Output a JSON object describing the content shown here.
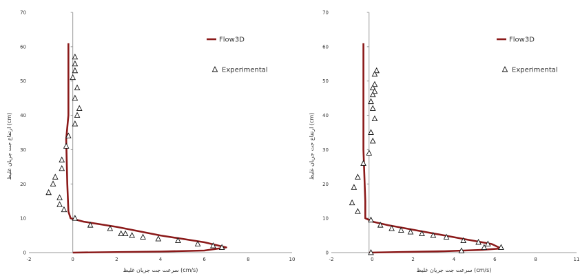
{
  "chart_data": [
    {
      "type": "scatter",
      "xlim": [
        -2,
        10
      ],
      "ylim": [
        0,
        70
      ],
      "x_ticks": [
        "-2",
        "0",
        "2",
        "4",
        "6",
        "8",
        "10"
      ],
      "y_ticks": [
        "0",
        "10",
        "20",
        "30",
        "40",
        "50",
        "60",
        "70"
      ],
      "xlabel": "سرعت جت جريان غليظ (cm/s)",
      "ylabel": "ارتفاع جت جريان غليظ (cm)",
      "grid": false,
      "legend_position": "top-right",
      "series": [
        {
          "name": "Flow3D",
          "kind": "line",
          "color": "#8b1a1a",
          "points": [
            [
              -0.2,
              61
            ],
            [
              -0.2,
              40
            ],
            [
              -0.3,
              33
            ],
            [
              -0.25,
              20
            ],
            [
              -0.2,
              12
            ],
            [
              -0.1,
              10
            ],
            [
              0.5,
              9
            ],
            [
              2,
              7.5
            ],
            [
              4,
              5
            ],
            [
              6,
              3
            ],
            [
              7,
              1.5
            ],
            [
              6,
              0.6
            ],
            [
              4,
              0.3
            ],
            [
              0,
              0
            ]
          ]
        },
        {
          "name": "Experimental",
          "kind": "marker",
          "marker": "triangle",
          "points": [
            [
              0.1,
              57
            ],
            [
              0.1,
              55
            ],
            [
              0.1,
              53
            ],
            [
              0.0,
              51
            ],
            [
              0.2,
              48
            ],
            [
              0.1,
              45
            ],
            [
              0.3,
              42
            ],
            [
              0.2,
              40
            ],
            [
              0.1,
              37.5
            ],
            [
              -0.2,
              34
            ],
            [
              -0.3,
              31
            ],
            [
              -0.5,
              27
            ],
            [
              -0.5,
              24.5
            ],
            [
              -0.8,
              22
            ],
            [
              -0.9,
              20
            ],
            [
              -1.1,
              17.5
            ],
            [
              -0.6,
              16
            ],
            [
              -0.6,
              14
            ],
            [
              -0.4,
              12.5
            ],
            [
              0.1,
              10
            ],
            [
              0.8,
              8
            ],
            [
              1.7,
              7
            ],
            [
              2.2,
              5.5
            ],
            [
              2.4,
              5.5
            ],
            [
              2.7,
              5
            ],
            [
              3.2,
              4.5
            ],
            [
              3.9,
              4
            ],
            [
              4.8,
              3.5
            ],
            [
              5.7,
              2.5
            ],
            [
              6.4,
              2
            ],
            [
              6.8,
              1.5
            ]
          ]
        }
      ]
    },
    {
      "type": "scatter",
      "xlim": [
        -2,
        11
      ],
      "ylim": [
        0,
        70
      ],
      "x_ticks": [
        "-2",
        "0",
        "2",
        "4",
        "6",
        "8",
        "11"
      ],
      "y_ticks": [
        "0",
        "10",
        "20",
        "30",
        "40",
        "50",
        "60",
        "70"
      ],
      "xlabel": "سرعت جت جريان غليظ (cm/s)",
      "ylabel": "ارتفاع جت جريان غليظ (cm)",
      "grid": false,
      "legend_position": "top-right",
      "series": [
        {
          "name": "Flow3D",
          "kind": "line",
          "color": "#8b1a1a",
          "points": [
            [
              -0.3,
              61
            ],
            [
              -0.3,
              45
            ],
            [
              -0.3,
              30
            ],
            [
              -0.2,
              15
            ],
            [
              -0.2,
              10
            ],
            [
              0.2,
              9
            ],
            [
              1,
              8
            ],
            [
              3,
              6
            ],
            [
              5,
              4
            ],
            [
              6.5,
              2.5
            ],
            [
              7,
              1.2
            ],
            [
              6,
              0.8
            ],
            [
              4,
              0.4
            ],
            [
              0,
              0
            ]
          ]
        },
        {
          "name": "Experimental",
          "kind": "marker",
          "marker": "triangle",
          "points": [
            [
              0.4,
              53
            ],
            [
              0.3,
              52
            ],
            [
              0.3,
              49
            ],
            [
              0.2,
              48
            ],
            [
              0.3,
              47
            ],
            [
              0.2,
              46
            ],
            [
              0.1,
              44
            ],
            [
              0.2,
              42
            ],
            [
              0.3,
              39
            ],
            [
              0.1,
              35
            ],
            [
              0.2,
              32.5
            ],
            [
              0.0,
              29
            ],
            [
              -0.3,
              26
            ],
            [
              -0.6,
              22
            ],
            [
              -0.8,
              19
            ],
            [
              -0.9,
              14.5
            ],
            [
              -0.6,
              12
            ],
            [
              0.1,
              9.5
            ],
            [
              0.6,
              8
            ],
            [
              1.2,
              7
            ],
            [
              1.7,
              6.5
            ],
            [
              2.2,
              6
            ],
            [
              2.8,
              5.5
            ],
            [
              3.4,
              5
            ],
            [
              4.1,
              4.5
            ],
            [
              5,
              3.5
            ],
            [
              5.8,
              3
            ],
            [
              6.3,
              2.5
            ],
            [
              7,
              1.5
            ],
            [
              6.1,
              1.5
            ],
            [
              4.9,
              0.5
            ],
            [
              0.1,
              0
            ]
          ]
        }
      ]
    }
  ]
}
